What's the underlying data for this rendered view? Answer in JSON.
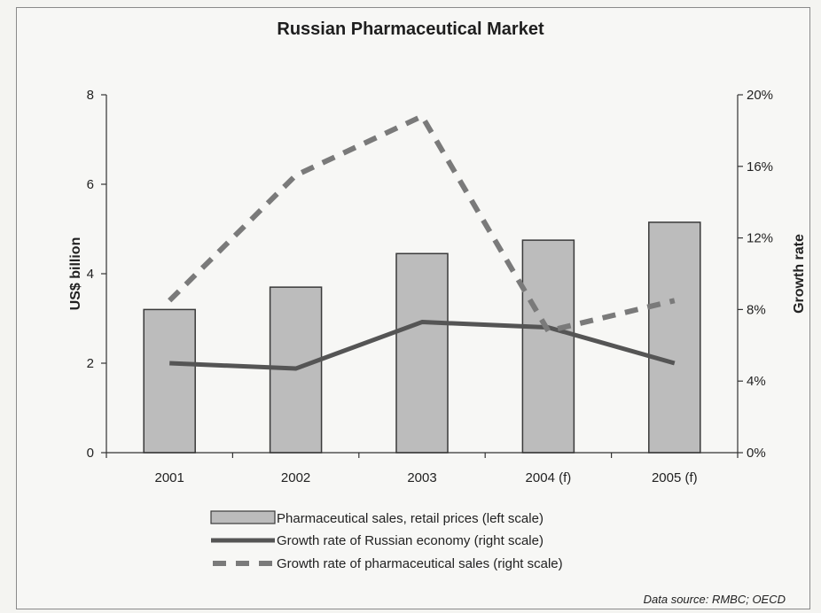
{
  "chart_data": {
    "type": "bar",
    "title": "Russian Pharmaceutical Market",
    "categories": [
      "2001",
      "2002",
      "2003",
      "2004 (f)",
      "2005 (f)"
    ],
    "ylabel": "US$ billion",
    "ylim": [
      0,
      8
    ],
    "yticks": [
      "0",
      "2",
      "4",
      "6",
      "8"
    ],
    "y2label": "Growth rate",
    "y2lim": [
      0,
      20
    ],
    "y2ticks": [
      "0%",
      "4%",
      "8%",
      "12%",
      "16%",
      "20%"
    ],
    "series": [
      {
        "name": "Pharmaceutical sales, retail prices (left scale)",
        "type": "bar",
        "axis": "left",
        "values": [
          3.2,
          3.7,
          4.45,
          4.75,
          5.15
        ]
      },
      {
        "name": "Growth rate of Russian economy (right scale)",
        "type": "line",
        "axis": "right",
        "values": [
          5.0,
          4.7,
          7.3,
          7.0,
          5.0
        ]
      },
      {
        "name": "Growth rate of pharmaceutical sales (right scale)",
        "type": "dashed-line",
        "axis": "right",
        "values": [
          8.5,
          15.5,
          18.8,
          6.8,
          8.5
        ]
      }
    ],
    "legend_position": "bottom",
    "grid": false,
    "source": "Data source: RMBC; OECD",
    "colors": {
      "bar_fill": "#bcbcbc",
      "bar_stroke": "#3a3a3a",
      "line": "#555555",
      "dash": "#7a7a7a"
    }
  }
}
